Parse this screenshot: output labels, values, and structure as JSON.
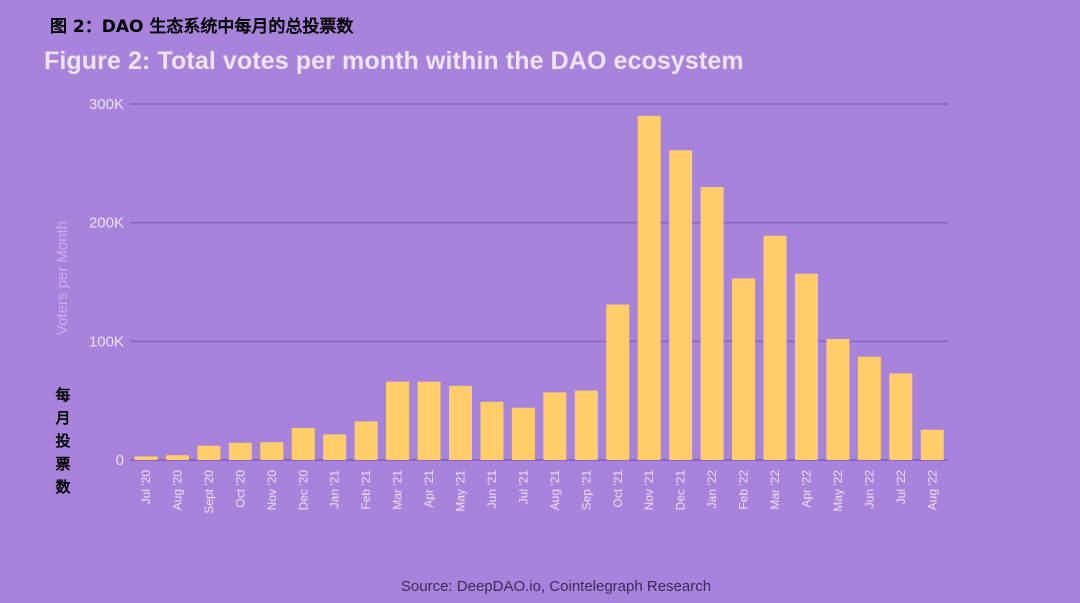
{
  "header": {
    "cn_title": "图 2：DAO 生态系统中每月的总投票数",
    "side_label": "每月投票数"
  },
  "footer": {
    "source": "Source: DeepDAO.io, Cointelegraph Research"
  },
  "colors": {
    "background": "#a783dc",
    "bar": "#ffce6b",
    "grid": "#8a63c2",
    "tick_text": "#ece2fa"
  },
  "chart_data": {
    "type": "bar",
    "title": "Figure 2: Total votes per month within the DAO ecosystem",
    "xlabel": "",
    "ylabel": "Voters per Month",
    "ylim": [
      0,
      300000
    ],
    "yticks": [
      0,
      100000,
      200000,
      300000
    ],
    "ytick_labels": [
      "0",
      "100K",
      "200K",
      "300K"
    ],
    "grid": true,
    "categories": [
      "Jul '20",
      "Aug '20",
      "Sept '20",
      "Oct '20",
      "Nov '20",
      "Dec '20",
      "Jan '21",
      "Feb '21",
      "Mar '21",
      "Apr '21",
      "May '21",
      "Jun '21",
      "Jul '21",
      "Aug '21",
      "Sep '21",
      "Oct '21",
      "Nov '21",
      "Dec '21",
      "Jan '22",
      "Feb '22",
      "Mar '22",
      "Apr '22",
      "May '22",
      "Jun '22",
      "Jul '22",
      "Aug '22"
    ],
    "values": [
      3000,
      4000,
      12000,
      14500,
      15000,
      27000,
      21500,
      32500,
      66000,
      66000,
      62500,
      49000,
      44000,
      57000,
      58500,
      131000,
      290000,
      261000,
      230000,
      153000,
      189000,
      157000,
      102000,
      87000,
      73000,
      25500
    ]
  }
}
